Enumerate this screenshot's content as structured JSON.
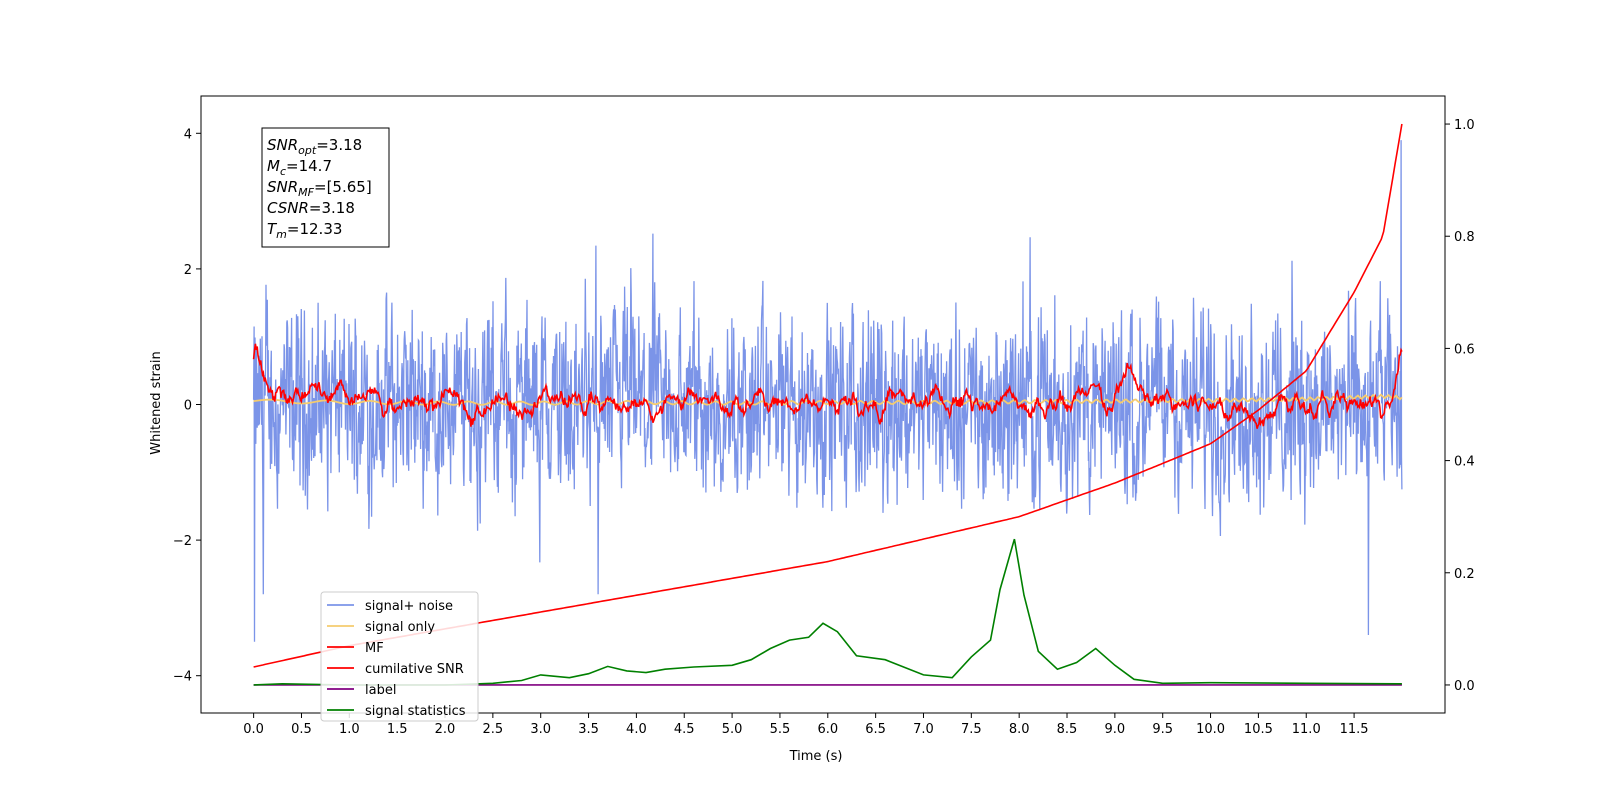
{
  "chart_data": {
    "type": "line",
    "xlabel": "Time (s)",
    "ylabel": "Whitened strain",
    "xlim": [
      -0.55,
      12.45
    ],
    "ylim": [
      -4.55,
      4.55
    ],
    "y2lim": [
      -0.05,
      1.05
    ],
    "x_ticks": [
      "0.0",
      "0.5",
      "1.0",
      "1.5",
      "2.0",
      "2.5",
      "3.0",
      "3.5",
      "4.0",
      "4.5",
      "5.0",
      "5.5",
      "6.0",
      "6.5",
      "7.0",
      "7.5",
      "8.0",
      "8.5",
      "9.0",
      "9.5",
      "10.0",
      "10.5",
      "11.0",
      "11.5"
    ],
    "y_ticks": [
      "4",
      "2",
      "0",
      "−2",
      "−4"
    ],
    "y2_ticks": [
      "1.0",
      "0.8",
      "0.6",
      "0.4",
      "0.2",
      "0.0"
    ],
    "grid": false,
    "legend_position": "lower-left",
    "annotation": {
      "lines": [
        {
          "italic": "SNR",
          "sub": "opt",
          "rest": "=3.18"
        },
        {
          "italic": "M",
          "sub": "c",
          "rest": "=14.7"
        },
        {
          "italic": "SNR",
          "sub": "MF",
          "rest": "=[5.65]"
        },
        {
          "italic": "CSNR",
          "sub": "",
          "rest": "=3.18"
        },
        {
          "italic": "T",
          "sub": "m",
          "rest": "=12.33"
        }
      ]
    },
    "series": [
      {
        "name": "signal+ noise",
        "color": "#7b94e8",
        "axis": "left",
        "style": "noise",
        "envelope": {
          "x": [
            0,
            12
          ],
          "upper_typical": 1.5,
          "lower_typical": -1.6,
          "peak_max": 2.7,
          "peak_min": -2.8
        },
        "spikes": [
          {
            "x": 11.99,
            "y": 3.9
          },
          {
            "x": 0.01,
            "y": -3.5
          },
          {
            "x": 11.65,
            "y": -3.4
          },
          {
            "x": 3.6,
            "y": -2.8
          },
          {
            "x": 0.1,
            "y": -2.8
          }
        ]
      },
      {
        "name": "signal only",
        "color": "#f5cc6e",
        "axis": "left",
        "x": [
          0,
          1,
          2,
          3,
          4,
          5,
          6,
          7,
          8,
          9,
          10,
          11,
          11.8,
          12
        ],
        "y": [
          0.05,
          0.03,
          0.02,
          0.02,
          0.03,
          0.02,
          0.03,
          0.03,
          0.04,
          0.05,
          0.06,
          0.08,
          0.12,
          0.1
        ]
      },
      {
        "name": "MF",
        "color": "#ff0000",
        "axis": "left",
        "style": "noisy",
        "x": [
          0,
          0.02,
          0.1,
          0.2,
          0.5,
          1.0,
          2.0,
          3.0,
          4.0,
          5.0,
          6.0,
          7.0,
          8.0,
          9.0,
          9.15,
          9.3,
          10.0,
          11.0,
          11.9,
          12.0
        ],
        "y": [
          0.7,
          1.0,
          0.5,
          0.3,
          0.1,
          0.0,
          0.0,
          0.05,
          0.0,
          0.0,
          0.0,
          0.05,
          0.05,
          0.0,
          0.6,
          0.0,
          0.0,
          0.0,
          -0.1,
          0.8
        ]
      },
      {
        "name": "cumilative SNR",
        "color": "#ff0000",
        "axis": "right",
        "x": [
          0,
          1,
          2,
          3,
          4,
          5,
          6,
          7,
          8,
          9,
          10,
          10.5,
          11,
          11.5,
          11.8,
          12
        ],
        "y": [
          0.032,
          0.07,
          0.1,
          0.13,
          0.16,
          0.19,
          0.22,
          0.26,
          0.3,
          0.36,
          0.43,
          0.49,
          0.56,
          0.7,
          0.8,
          1.0
        ]
      },
      {
        "name": "label",
        "color": "#800080",
        "axis": "right",
        "x": [
          0,
          12
        ],
        "y": [
          0.0,
          0.0
        ]
      },
      {
        "name": "signal statistics",
        "color": "#008000",
        "axis": "right",
        "x": [
          0,
          0.3,
          1.0,
          2.0,
          2.5,
          2.8,
          3.0,
          3.3,
          3.5,
          3.7,
          3.9,
          4.1,
          4.3,
          4.6,
          5.0,
          5.2,
          5.4,
          5.6,
          5.8,
          5.95,
          6.1,
          6.3,
          6.6,
          7.0,
          7.3,
          7.5,
          7.7,
          7.8,
          7.9,
          7.95,
          8.05,
          8.2,
          8.4,
          8.6,
          8.8,
          9.0,
          9.2,
          9.5,
          10.0,
          11.0,
          12.0
        ],
        "y": [
          0.0,
          0.002,
          0.0,
          0.0,
          0.003,
          0.008,
          0.018,
          0.013,
          0.02,
          0.033,
          0.025,
          0.022,
          0.028,
          0.032,
          0.035,
          0.045,
          0.065,
          0.08,
          0.085,
          0.11,
          0.095,
          0.052,
          0.045,
          0.018,
          0.013,
          0.05,
          0.08,
          0.17,
          0.23,
          0.26,
          0.16,
          0.06,
          0.028,
          0.04,
          0.065,
          0.035,
          0.01,
          0.003,
          0.004,
          0.003,
          0.002
        ]
      }
    ]
  }
}
